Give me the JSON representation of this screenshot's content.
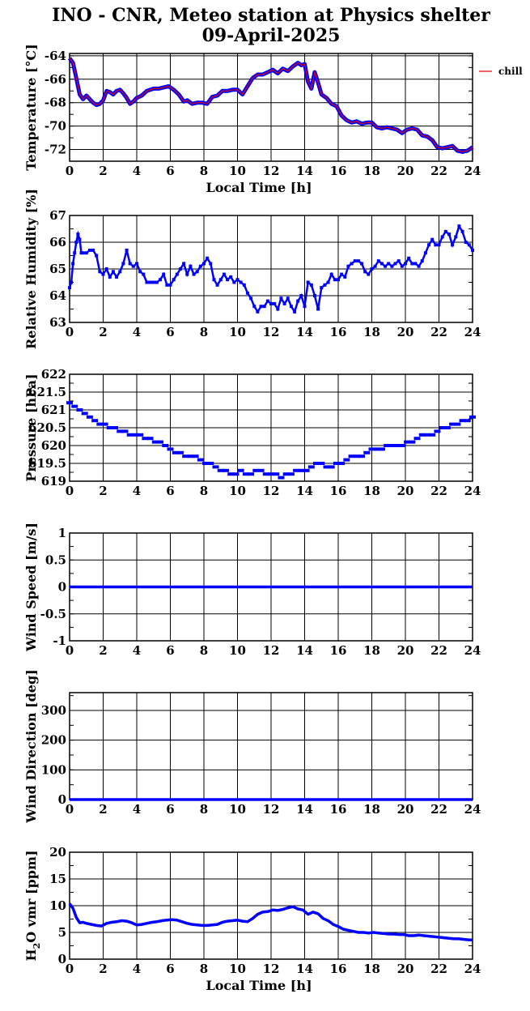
{
  "figure": {
    "title_line1": "INO - CNR, Meteo station at Physics shelter",
    "title_line2": "09-April-2025"
  },
  "chart_data": [
    {
      "id": "temperature",
      "type": "line",
      "ylabel": "Temperature [°C]",
      "xlabel": "Local Time [h]",
      "xlim": [
        0,
        24
      ],
      "ylim": [
        -73,
        -63.8
      ],
      "yticks": [
        -72,
        -70,
        -68,
        -66,
        -64
      ],
      "xticks": [
        0,
        2,
        4,
        6,
        8,
        10,
        12,
        14,
        16,
        18,
        20,
        22,
        24
      ],
      "grid": true,
      "legend": "top-right, outside plot",
      "series": [
        {
          "name": "chill",
          "color": "#e00000",
          "x": [
            0,
            0.2,
            0.4,
            0.6,
            0.8,
            1.0,
            1.2,
            1.4,
            1.6,
            1.8,
            2.0,
            2.2,
            2.4,
            2.6,
            2.8,
            3.0,
            3.2,
            3.4,
            3.6,
            3.8,
            4.0,
            4.3,
            4.6,
            5.0,
            5.3,
            5.6,
            5.9,
            6.2,
            6.5,
            6.8,
            7.0,
            7.3,
            7.6,
            7.9,
            8.2,
            8.5,
            8.8,
            9.1,
            9.4,
            9.7,
            10.0,
            10.3,
            10.6,
            10.9,
            11.2,
            11.5,
            11.8,
            12.1,
            12.4,
            12.7,
            13.0,
            13.3,
            13.6,
            13.8,
            14.0,
            14.2,
            14.4,
            14.6,
            14.8,
            15.0,
            15.3,
            15.6,
            15.9,
            16.2,
            16.5,
            16.8,
            17.1,
            17.4,
            17.7,
            18.0,
            18.3,
            18.6,
            18.9,
            19.2,
            19.5,
            19.8,
            20.1,
            20.4,
            20.7,
            21.0,
            21.3,
            21.6,
            21.9,
            22.2,
            22.5,
            22.8,
            23.1,
            23.4,
            23.7,
            24.0
          ],
          "values": [
            -64.2,
            -64.6,
            -65.9,
            -67.3,
            -67.7,
            -67.4,
            -67.7,
            -68.0,
            -68.2,
            -68.1,
            -67.8,
            -67.0,
            -67.1,
            -67.3,
            -67.0,
            -66.9,
            -67.2,
            -67.6,
            -68.1,
            -67.9,
            -67.6,
            -67.4,
            -67.0,
            -66.8,
            -66.8,
            -66.7,
            -66.6,
            -66.9,
            -67.3,
            -67.9,
            -67.8,
            -68.1,
            -68.0,
            -68.0,
            -68.1,
            -67.5,
            -67.4,
            -67.0,
            -67.0,
            -66.9,
            -66.9,
            -67.3,
            -66.6,
            -65.9,
            -65.6,
            -65.6,
            -65.4,
            -65.2,
            -65.5,
            -65.1,
            -65.3,
            -64.9,
            -64.6,
            -64.8,
            -64.7,
            -66.2,
            -66.8,
            -65.4,
            -66.3,
            -67.3,
            -67.6,
            -68.1,
            -68.3,
            -69.1,
            -69.5,
            -69.7,
            -69.6,
            -69.8,
            -69.7,
            -69.7,
            -70.1,
            -70.2,
            -70.1,
            -70.2,
            -70.3,
            -70.6,
            -70.3,
            -70.2,
            -70.3,
            -70.8,
            -70.9,
            -71.2,
            -71.8,
            -71.9,
            -71.8,
            -71.7,
            -72.1,
            -72.2,
            -72.1,
            -71.8
          ]
        }
      ]
    },
    {
      "id": "humidity",
      "type": "line",
      "ylabel": "Relative Humidity [%]",
      "xlim": [
        0,
        24
      ],
      "ylim": [
        63,
        67
      ],
      "yticks": [
        63,
        64,
        65,
        66,
        67
      ],
      "xticks": [
        0,
        2,
        4,
        6,
        8,
        10,
        12,
        14,
        16,
        18,
        20,
        22,
        24
      ],
      "grid": true,
      "series": [
        {
          "color": "#0000ff",
          "x": [
            0,
            0.1,
            0.2,
            0.3,
            0.4,
            0.5,
            0.6,
            0.7,
            0.8,
            1.0,
            1.2,
            1.4,
            1.6,
            1.8,
            2.0,
            2.2,
            2.4,
            2.6,
            2.8,
            3.0,
            3.2,
            3.4,
            3.6,
            3.8,
            4.0,
            4.2,
            4.4,
            4.6,
            4.8,
            5.0,
            5.2,
            5.4,
            5.6,
            5.8,
            6.0,
            6.2,
            6.4,
            6.6,
            6.8,
            7.0,
            7.2,
            7.4,
            7.6,
            7.8,
            8.0,
            8.2,
            8.4,
            8.6,
            8.8,
            9.0,
            9.2,
            9.4,
            9.6,
            9.8,
            10.0,
            10.2,
            10.4,
            10.6,
            10.8,
            11.0,
            11.2,
            11.4,
            11.6,
            11.8,
            12.0,
            12.2,
            12.4,
            12.6,
            12.8,
            13.0,
            13.2,
            13.4,
            13.6,
            13.8,
            14.0,
            14.2,
            14.4,
            14.6,
            14.8,
            15.0,
            15.2,
            15.4,
            15.6,
            15.8,
            16.0,
            16.2,
            16.4,
            16.6,
            16.8,
            17.0,
            17.2,
            17.4,
            17.6,
            17.8,
            18.0,
            18.2,
            18.4,
            18.6,
            18.8,
            19.0,
            19.2,
            19.4,
            19.6,
            19.8,
            20.0,
            20.2,
            20.4,
            20.6,
            20.8,
            21.0,
            21.2,
            21.4,
            21.6,
            21.8,
            22.0,
            22.2,
            22.4,
            22.6,
            22.8,
            23.0,
            23.2,
            23.4,
            23.6,
            23.8,
            24.0
          ],
          "values": [
            64.3,
            64.5,
            65.2,
            65.6,
            66.0,
            66.3,
            66.1,
            65.6,
            65.6,
            65.6,
            65.7,
            65.7,
            65.5,
            64.9,
            64.8,
            65.0,
            64.7,
            64.9,
            64.7,
            64.9,
            65.2,
            65.7,
            65.2,
            65.1,
            65.2,
            64.9,
            64.8,
            64.5,
            64.5,
            64.5,
            64.5,
            64.6,
            64.8,
            64.4,
            64.4,
            64.6,
            64.8,
            65.0,
            65.2,
            64.8,
            65.1,
            64.8,
            64.9,
            65.1,
            65.2,
            65.4,
            65.2,
            64.6,
            64.4,
            64.6,
            64.8,
            64.6,
            64.7,
            64.5,
            64.6,
            64.5,
            64.4,
            64.1,
            63.9,
            63.6,
            63.4,
            63.6,
            63.6,
            63.8,
            63.7,
            63.7,
            63.5,
            63.9,
            63.7,
            63.9,
            63.6,
            63.4,
            63.8,
            64.0,
            63.6,
            64.5,
            64.4,
            64.0,
            63.5,
            64.3,
            64.4,
            64.5,
            64.8,
            64.6,
            64.6,
            64.8,
            64.7,
            65.1,
            65.2,
            65.3,
            65.3,
            65.2,
            64.9,
            64.8,
            65.0,
            65.1,
            65.3,
            65.2,
            65.1,
            65.2,
            65.1,
            65.2,
            65.3,
            65.1,
            65.2,
            65.4,
            65.2,
            65.2,
            65.1,
            65.3,
            65.6,
            65.9,
            66.1,
            65.9,
            65.9,
            66.2,
            66.4,
            66.3,
            65.9,
            66.2,
            66.6,
            66.4,
            66.0,
            65.9,
            65.7
          ],
          "markers": "dots"
        }
      ]
    },
    {
      "id": "pressure",
      "type": "line",
      "ylabel": "Pressure [hPa]",
      "xlim": [
        0,
        24
      ],
      "ylim": [
        619,
        622
      ],
      "yticks": [
        619,
        619.5,
        620,
        620.5,
        621,
        621.5,
        622
      ],
      "xticks": [
        0,
        2,
        4,
        6,
        8,
        10,
        12,
        14,
        16,
        18,
        20,
        22,
        24
      ],
      "grid": true,
      "series": [
        {
          "color": "#0000ff",
          "x": [
            0,
            0.3,
            0.6,
            0.9,
            1.2,
            1.5,
            1.8,
            2.1,
            2.4,
            2.7,
            3.0,
            3.3,
            3.6,
            3.9,
            4.2,
            4.5,
            4.8,
            5.1,
            5.4,
            5.7,
            6.0,
            6.3,
            6.6,
            6.9,
            7.2,
            7.5,
            7.8,
            8.1,
            8.4,
            8.7,
            9.0,
            9.3,
            9.6,
            9.9,
            10.2,
            10.5,
            10.8,
            11.1,
            11.4,
            11.7,
            12.0,
            12.3,
            12.6,
            12.9,
            13.2,
            13.5,
            13.8,
            14.1,
            14.4,
            14.7,
            15.0,
            15.3,
            15.6,
            15.9,
            16.2,
            16.5,
            16.8,
            17.1,
            17.4,
            17.7,
            18.0,
            18.3,
            18.6,
            18.9,
            19.2,
            19.5,
            19.8,
            20.1,
            20.4,
            20.7,
            21.0,
            21.3,
            21.6,
            21.9,
            22.2,
            22.5,
            22.8,
            23.1,
            23.4,
            23.7,
            24.0
          ],
          "values": [
            621.2,
            621.1,
            621.0,
            620.9,
            620.8,
            620.7,
            620.6,
            620.6,
            620.5,
            620.5,
            620.4,
            620.4,
            620.3,
            620.3,
            620.3,
            620.2,
            620.2,
            620.1,
            620.1,
            620.0,
            619.9,
            619.8,
            619.8,
            619.7,
            619.7,
            619.7,
            619.6,
            619.5,
            619.5,
            619.4,
            619.3,
            619.3,
            619.2,
            619.2,
            619.3,
            619.2,
            619.2,
            619.3,
            619.3,
            619.2,
            619.2,
            619.2,
            619.1,
            619.2,
            619.2,
            619.3,
            619.3,
            619.3,
            619.4,
            619.5,
            619.5,
            619.4,
            619.4,
            619.5,
            619.5,
            619.6,
            619.7,
            619.7,
            619.7,
            619.8,
            619.9,
            619.9,
            619.9,
            620.0,
            620.0,
            620.0,
            620.0,
            620.1,
            620.1,
            620.2,
            620.3,
            620.3,
            620.3,
            620.4,
            620.5,
            620.5,
            620.6,
            620.6,
            620.7,
            620.7,
            620.8
          ],
          "markers": "dashes"
        }
      ]
    },
    {
      "id": "windspeed",
      "type": "line",
      "ylabel": "Wind Speed [m/s]",
      "xlim": [
        0,
        24
      ],
      "ylim": [
        -1,
        1
      ],
      "yticks": [
        -1,
        -0.5,
        0,
        0.5,
        1
      ],
      "xticks": [
        0,
        2,
        4,
        6,
        8,
        10,
        12,
        14,
        16,
        18,
        20,
        22,
        24
      ],
      "grid": true,
      "series": [
        {
          "color": "#0000ff",
          "x": [
            0,
            24
          ],
          "values": [
            0,
            0
          ]
        }
      ]
    },
    {
      "id": "winddir",
      "type": "line",
      "ylabel": "Wind Direction [deg]",
      "xlim": [
        0,
        24
      ],
      "ylim": [
        0,
        360
      ],
      "yticks": [
        0,
        100,
        200,
        300
      ],
      "xticks": [
        0,
        2,
        4,
        6,
        8,
        10,
        12,
        14,
        16,
        18,
        20,
        22,
        24
      ],
      "grid": true,
      "series": [
        {
          "color": "#0000ff",
          "x": [
            0,
            24
          ],
          "values": [
            0,
            0
          ]
        }
      ]
    },
    {
      "id": "h2o",
      "type": "line",
      "ylabel": "H2O vmr [ppm]",
      "xlabel": "Local Time [h]",
      "xlim": [
        0,
        24
      ],
      "ylim": [
        0,
        20
      ],
      "yticks": [
        0,
        5,
        10,
        15,
        20
      ],
      "xticks": [
        0,
        2,
        4,
        6,
        8,
        10,
        12,
        14,
        16,
        18,
        20,
        22,
        24
      ],
      "grid": true,
      "series": [
        {
          "color": "#0000ff",
          "x": [
            0,
            0.2,
            0.4,
            0.6,
            0.8,
            1.0,
            1.3,
            1.6,
            1.9,
            2.2,
            2.5,
            2.8,
            3.1,
            3.4,
            3.7,
            4.0,
            4.3,
            4.6,
            4.9,
            5.2,
            5.5,
            5.8,
            6.1,
            6.4,
            6.7,
            7.0,
            7.3,
            7.6,
            7.9,
            8.2,
            8.5,
            8.8,
            9.1,
            9.4,
            9.7,
            10.0,
            10.3,
            10.6,
            10.9,
            11.2,
            11.5,
            11.8,
            12.1,
            12.4,
            12.7,
            13.0,
            13.3,
            13.6,
            13.9,
            14.2,
            14.5,
            14.8,
            15.1,
            15.4,
            15.7,
            16.0,
            16.3,
            16.6,
            16.9,
            17.2,
            17.5,
            17.8,
            18.1,
            18.4,
            18.7,
            19.0,
            19.3,
            19.6,
            19.9,
            20.2,
            20.5,
            20.8,
            21.1,
            21.4,
            21.7,
            22.0,
            22.3,
            22.6,
            22.9,
            23.2,
            23.5,
            23.8,
            24.0
          ],
          "values": [
            10.4,
            9.5,
            7.8,
            6.8,
            6.9,
            6.7,
            6.5,
            6.3,
            6.2,
            6.7,
            6.9,
            7.0,
            7.2,
            7.1,
            6.8,
            6.4,
            6.5,
            6.7,
            6.9,
            7.0,
            7.2,
            7.3,
            7.4,
            7.3,
            7.0,
            6.7,
            6.5,
            6.4,
            6.3,
            6.3,
            6.4,
            6.5,
            6.9,
            7.1,
            7.2,
            7.3,
            7.1,
            7.0,
            7.6,
            8.4,
            8.8,
            8.9,
            9.2,
            9.1,
            9.3,
            9.6,
            9.8,
            9.4,
            9.2,
            8.4,
            8.8,
            8.5,
            7.6,
            7.2,
            6.5,
            6.1,
            5.6,
            5.4,
            5.2,
            5.0,
            5.0,
            4.9,
            5.0,
            4.9,
            4.8,
            4.7,
            4.7,
            4.6,
            4.6,
            4.4,
            4.4,
            4.5,
            4.4,
            4.3,
            4.2,
            4.1,
            4.0,
            3.9,
            3.8,
            3.8,
            3.7,
            3.6,
            3.6
          ]
        }
      ]
    }
  ]
}
